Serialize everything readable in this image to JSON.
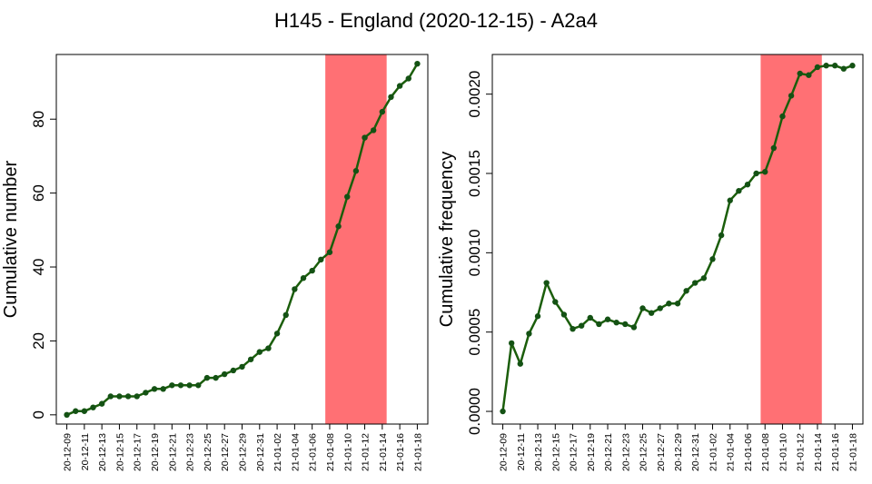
{
  "title": "H145 - England (2020-12-15) - A2a4",
  "colors": {
    "line": "#1b5e0b",
    "point": "#145214",
    "highlight": "#ff7074",
    "axis": "#000000"
  },
  "chart_data": [
    {
      "type": "line",
      "ylabel": "Cumulative number",
      "ylim": [
        -2.5,
        97.5
      ],
      "yticks": [
        0,
        20,
        40,
        60,
        80
      ],
      "ytick_labels": [
        "0",
        "20",
        "40",
        "60",
        "80"
      ],
      "categories": [
        "20-12-09",
        "20-12-10",
        "20-12-11",
        "20-12-12",
        "20-12-13",
        "20-12-14",
        "20-12-15",
        "20-12-16",
        "20-12-17",
        "20-12-18",
        "20-12-19",
        "20-12-20",
        "20-12-21",
        "20-12-22",
        "20-12-23",
        "20-12-24",
        "20-12-25",
        "20-12-26",
        "20-12-27",
        "20-12-28",
        "20-12-29",
        "20-12-30",
        "20-12-31",
        "21-01-01",
        "21-01-02",
        "21-01-03",
        "21-01-04",
        "21-01-05",
        "21-01-06",
        "21-01-07",
        "21-01-08",
        "21-01-09",
        "21-01-10",
        "21-01-11",
        "21-01-12",
        "21-01-13",
        "21-01-14",
        "21-01-15",
        "21-01-16",
        "21-01-17",
        "21-01-18"
      ],
      "xtick_labels": [
        "20-12-09",
        "20-12-11",
        "20-12-13",
        "20-12-15",
        "20-12-17",
        "20-12-19",
        "20-12-21",
        "20-12-23",
        "20-12-25",
        "20-12-27",
        "20-12-29",
        "20-12-31",
        "21-01-02",
        "21-01-04",
        "21-01-06",
        "21-01-08",
        "21-01-10",
        "21-01-12",
        "21-01-14",
        "21-01-16",
        "21-01-18"
      ],
      "values": [
        0,
        1,
        1,
        2,
        3,
        5,
        5,
        5,
        5,
        6,
        7,
        7,
        8,
        8,
        8,
        8,
        10,
        10,
        11,
        12,
        13,
        15,
        17,
        18,
        22,
        27,
        34,
        37,
        39,
        42,
        44,
        51,
        59,
        66,
        75,
        77,
        82,
        86,
        89,
        91,
        95
      ],
      "highlight_range": [
        "21-01-07.5",
        "21-01-14.5"
      ],
      "highlight_index": [
        29.5,
        36.5
      ]
    },
    {
      "type": "line",
      "ylabel": "Cumulative frequency",
      "ylim": [
        -8e-05,
        0.00225
      ],
      "yticks": [
        0,
        0.0005,
        0.001,
        0.0015,
        0.002
      ],
      "ytick_labels": [
        "0.0000",
        "0.0005",
        "0.0010",
        "0.0015",
        "0.0020"
      ],
      "categories": [
        "20-12-09",
        "20-12-10",
        "20-12-11",
        "20-12-12",
        "20-12-13",
        "20-12-14",
        "20-12-15",
        "20-12-16",
        "20-12-17",
        "20-12-18",
        "20-12-19",
        "20-12-20",
        "20-12-21",
        "20-12-22",
        "20-12-23",
        "20-12-24",
        "20-12-25",
        "20-12-26",
        "20-12-27",
        "20-12-28",
        "20-12-29",
        "20-12-30",
        "20-12-31",
        "21-01-01",
        "21-01-02",
        "21-01-03",
        "21-01-04",
        "21-01-05",
        "21-01-06",
        "21-01-07",
        "21-01-08",
        "21-01-09",
        "21-01-10",
        "21-01-11",
        "21-01-12",
        "21-01-13",
        "21-01-14",
        "21-01-15",
        "21-01-16",
        "21-01-17",
        "21-01-18"
      ],
      "xtick_labels": [
        "20-12-09",
        "20-12-11",
        "20-12-13",
        "20-12-15",
        "20-12-17",
        "20-12-19",
        "20-12-21",
        "20-12-23",
        "20-12-25",
        "20-12-27",
        "20-12-29",
        "20-12-31",
        "21-01-02",
        "21-01-04",
        "21-01-06",
        "21-01-08",
        "21-01-10",
        "21-01-12",
        "21-01-14",
        "21-01-16",
        "21-01-18"
      ],
      "values": [
        0,
        0.00043,
        0.0003,
        0.00049,
        0.0006,
        0.00081,
        0.00069,
        0.00061,
        0.00052,
        0.00054,
        0.00059,
        0.00055,
        0.00058,
        0.00056,
        0.00055,
        0.00053,
        0.00065,
        0.00062,
        0.00065,
        0.00068,
        0.00068,
        0.00076,
        0.00081,
        0.00084,
        0.00096,
        0.00111,
        0.00133,
        0.00139,
        0.00143,
        0.0015,
        0.00151,
        0.00166,
        0.00186,
        0.00199,
        0.00213,
        0.00212,
        0.00217,
        0.00218,
        0.00218,
        0.00216,
        0.00218
      ],
      "highlight_index": [
        29.5,
        36.5
      ]
    }
  ]
}
